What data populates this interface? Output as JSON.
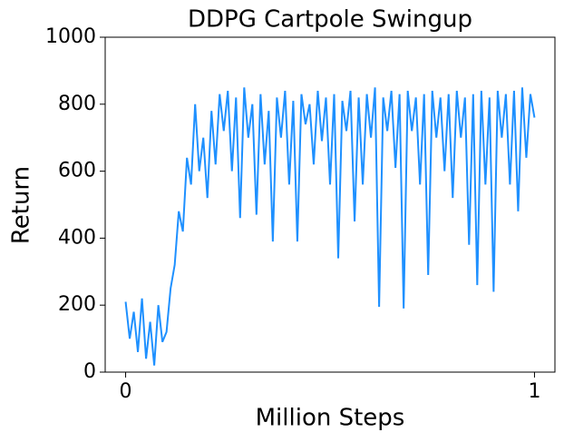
{
  "chart_data": {
    "type": "line",
    "title": "DDPG Cartpole Swingup",
    "x_label": "Million Steps",
    "y_label": "Return",
    "x": [
      0,
      0.01,
      0.02,
      0.03,
      0.04,
      0.05,
      0.06,
      0.07,
      0.08,
      0.09,
      0.1,
      0.11,
      0.12,
      0.13,
      0.14,
      0.15,
      0.16,
      0.17,
      0.18,
      0.19,
      0.2,
      0.21,
      0.22,
      0.23,
      0.24,
      0.25,
      0.26,
      0.27,
      0.28,
      0.29,
      0.3,
      0.31,
      0.32,
      0.33,
      0.34,
      0.35,
      0.36,
      0.37,
      0.38,
      0.39,
      0.4,
      0.41,
      0.42,
      0.43,
      0.44,
      0.45,
      0.46,
      0.47,
      0.48,
      0.49,
      0.5,
      0.51,
      0.52,
      0.53,
      0.54,
      0.55,
      0.56,
      0.57,
      0.58,
      0.59,
      0.6,
      0.61,
      0.62,
      0.63,
      0.64,
      0.65,
      0.66,
      0.67,
      0.68,
      0.69,
      0.7,
      0.71,
      0.72,
      0.73,
      0.74,
      0.75,
      0.76,
      0.77,
      0.78,
      0.79,
      0.8,
      0.81,
      0.82,
      0.83,
      0.84,
      0.85,
      0.86,
      0.87,
      0.88,
      0.89,
      0.9,
      0.91,
      0.92,
      0.93,
      0.94,
      0.95,
      0.96,
      0.97,
      0.98,
      0.99,
      1
    ],
    "series": [
      {
        "name": "DDPG",
        "color": "#1e90ff",
        "values": [
          210,
          100,
          180,
          60,
          220,
          40,
          150,
          20,
          200,
          90,
          120,
          250,
          320,
          480,
          420,
          640,
          560,
          800,
          600,
          700,
          520,
          780,
          620,
          830,
          720,
          840,
          600,
          820,
          460,
          850,
          700,
          800,
          470,
          830,
          620,
          780,
          390,
          820,
          700,
          840,
          560,
          810,
          390,
          830,
          740,
          800,
          620,
          840,
          690,
          820,
          560,
          830,
          340,
          810,
          720,
          840,
          450,
          820,
          560,
          830,
          700,
          850,
          195,
          820,
          720,
          840,
          610,
          830,
          190,
          840,
          720,
          820,
          560,
          830,
          290,
          840,
          700,
          820,
          600,
          830,
          520,
          840,
          700,
          820,
          380,
          830,
          260,
          840,
          560,
          820,
          240,
          840,
          700,
          830,
          560,
          840,
          480,
          850,
          640,
          830,
          760
        ]
      }
    ],
    "xlim": [
      -0.05,
      1.05
    ],
    "ylim": [
      0,
      1000
    ],
    "xticks": [
      0,
      1
    ],
    "yticks": [
      0,
      200,
      400,
      600,
      800,
      1000
    ],
    "grid": false
  }
}
